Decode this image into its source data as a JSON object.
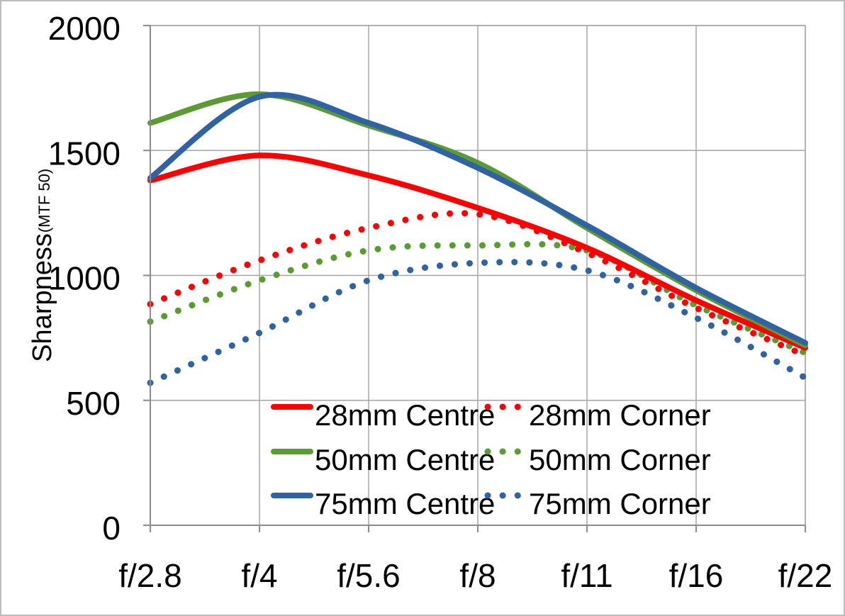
{
  "chart_data": {
    "type": "line",
    "title": "",
    "xlabel": "",
    "ylabel": "Sharpness",
    "ylabel_sub": "(MTF 50)",
    "categories": [
      "f/2.8",
      "f/4",
      "f/5.6",
      "f/8",
      "f/11",
      "f/16",
      "f/22"
    ],
    "ylim": [
      0,
      2000
    ],
    "yticks": [
      0,
      500,
      1000,
      1500,
      2000
    ],
    "grid": true,
    "legend_position": "bottom-center",
    "series": [
      {
        "name": "28mm Centre",
        "style": "solid",
        "color": "#ff0000",
        "values": [
          1380,
          1480,
          1400,
          1270,
          1110,
          900,
          710
        ]
      },
      {
        "name": "28mm Corner",
        "style": "dotted",
        "color": "#ff0000",
        "values": [
          885,
          1060,
          1190,
          1245,
          1090,
          870,
          680
        ]
      },
      {
        "name": "50mm Centre",
        "style": "solid",
        "color": "#5b9b32",
        "values": [
          1610,
          1725,
          1600,
          1450,
          1190,
          940,
          720
        ]
      },
      {
        "name": "50mm Corner",
        "style": "dotted",
        "color": "#5b9b32",
        "values": [
          815,
          980,
          1100,
          1120,
          1100,
          880,
          690
        ]
      },
      {
        "name": "75mm Centre",
        "style": "solid",
        "color": "#2f63a4",
        "values": [
          1390,
          1715,
          1610,
          1430,
          1200,
          950,
          730
        ]
      },
      {
        "name": "75mm Corner",
        "style": "dotted",
        "color": "#2f63a4",
        "values": [
          570,
          770,
          980,
          1050,
          1020,
          830,
          590
        ]
      }
    ]
  }
}
